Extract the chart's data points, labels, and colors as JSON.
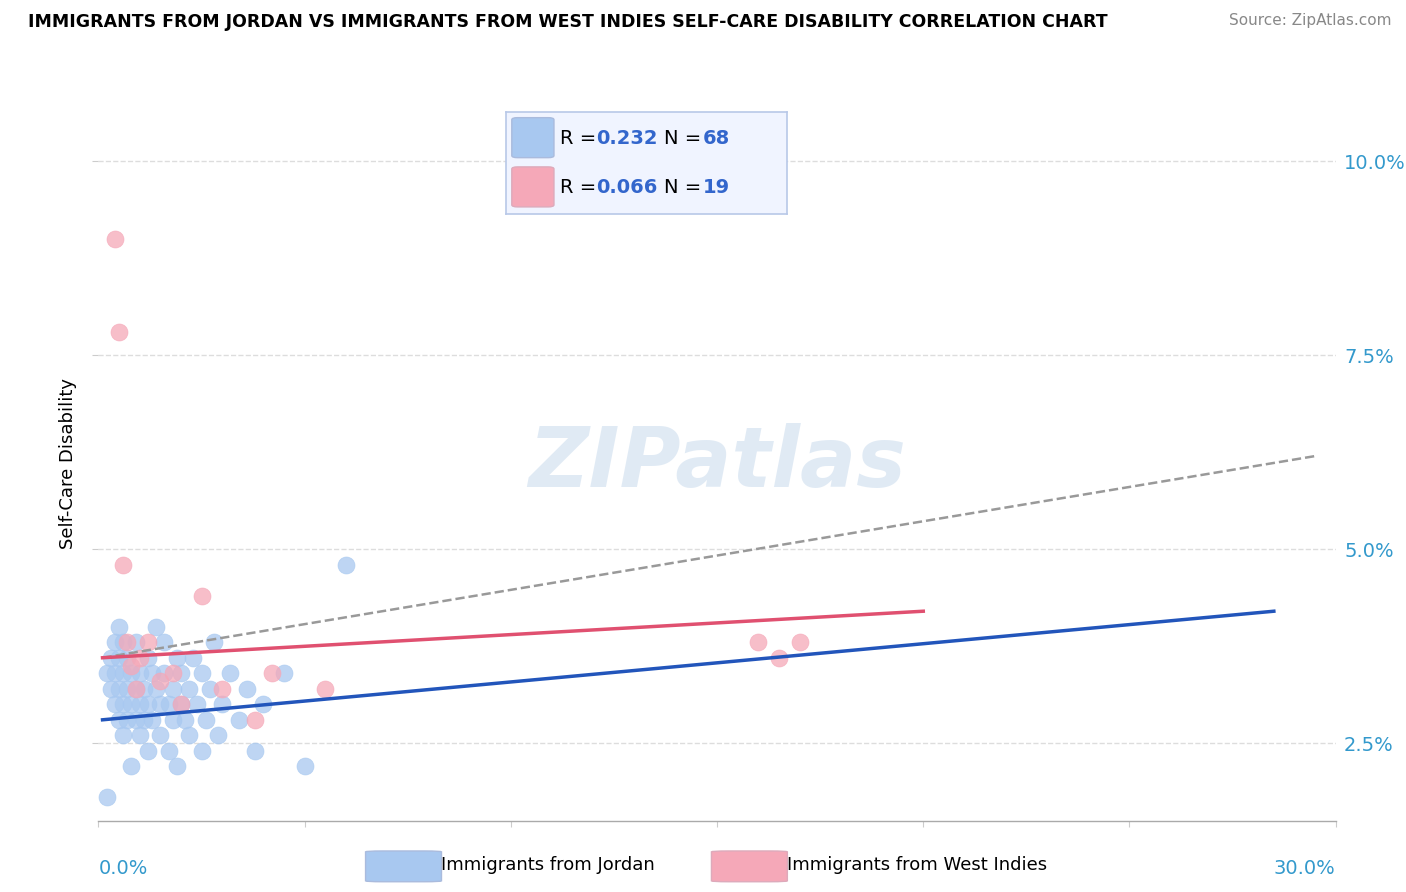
{
  "title": "IMMIGRANTS FROM JORDAN VS IMMIGRANTS FROM WEST INDIES SELF-CARE DISABILITY CORRELATION CHART",
  "source": "Source: ZipAtlas.com",
  "ylabel": "Self-Care Disability",
  "ytick_vals": [
    0.025,
    0.05,
    0.075,
    0.1
  ],
  "xlim": [
    0.0,
    0.3
  ],
  "ylim": [
    0.015,
    0.107
  ],
  "jordan_R": 0.232,
  "jordan_N": 68,
  "wi_R": 0.066,
  "wi_N": 19,
  "jordan_color": "#a8c8f0",
  "jordan_line_color": "#2255bb",
  "wi_color": "#f5a8b8",
  "wi_line_color": "#e05070",
  "jordan_line_x": [
    0.001,
    0.285
  ],
  "jordan_line_y": [
    0.028,
    0.042
  ],
  "wi_line_x": [
    0.001,
    0.2
  ],
  "wi_line_y": [
    0.036,
    0.042
  ],
  "gray_line_x": [
    0.001,
    0.295
  ],
  "gray_line_y": [
    0.036,
    0.062
  ],
  "jordan_scatter": [
    [
      0.002,
      0.034
    ],
    [
      0.003,
      0.036
    ],
    [
      0.003,
      0.032
    ],
    [
      0.004,
      0.038
    ],
    [
      0.004,
      0.03
    ],
    [
      0.004,
      0.034
    ],
    [
      0.005,
      0.036
    ],
    [
      0.005,
      0.032
    ],
    [
      0.005,
      0.028
    ],
    [
      0.005,
      0.04
    ],
    [
      0.006,
      0.034
    ],
    [
      0.006,
      0.03
    ],
    [
      0.006,
      0.038
    ],
    [
      0.006,
      0.026
    ],
    [
      0.007,
      0.032
    ],
    [
      0.007,
      0.036
    ],
    [
      0.007,
      0.028
    ],
    [
      0.008,
      0.034
    ],
    [
      0.008,
      0.03
    ],
    [
      0.008,
      0.022
    ],
    [
      0.009,
      0.032
    ],
    [
      0.009,
      0.028
    ],
    [
      0.009,
      0.038
    ],
    [
      0.01,
      0.03
    ],
    [
      0.01,
      0.034
    ],
    [
      0.01,
      0.026
    ],
    [
      0.011,
      0.032
    ],
    [
      0.011,
      0.028
    ],
    [
      0.012,
      0.036
    ],
    [
      0.012,
      0.03
    ],
    [
      0.012,
      0.024
    ],
    [
      0.013,
      0.034
    ],
    [
      0.013,
      0.028
    ],
    [
      0.014,
      0.032
    ],
    [
      0.014,
      0.04
    ],
    [
      0.015,
      0.03
    ],
    [
      0.015,
      0.026
    ],
    [
      0.016,
      0.034
    ],
    [
      0.016,
      0.038
    ],
    [
      0.017,
      0.03
    ],
    [
      0.017,
      0.024
    ],
    [
      0.018,
      0.032
    ],
    [
      0.018,
      0.028
    ],
    [
      0.019,
      0.036
    ],
    [
      0.019,
      0.022
    ],
    [
      0.02,
      0.03
    ],
    [
      0.02,
      0.034
    ],
    [
      0.021,
      0.028
    ],
    [
      0.022,
      0.032
    ],
    [
      0.022,
      0.026
    ],
    [
      0.023,
      0.036
    ],
    [
      0.024,
      0.03
    ],
    [
      0.025,
      0.034
    ],
    [
      0.025,
      0.024
    ],
    [
      0.026,
      0.028
    ],
    [
      0.027,
      0.032
    ],
    [
      0.028,
      0.038
    ],
    [
      0.029,
      0.026
    ],
    [
      0.03,
      0.03
    ],
    [
      0.032,
      0.034
    ],
    [
      0.034,
      0.028
    ],
    [
      0.036,
      0.032
    ],
    [
      0.038,
      0.024
    ],
    [
      0.04,
      0.03
    ],
    [
      0.045,
      0.034
    ],
    [
      0.05,
      0.022
    ],
    [
      0.06,
      0.048
    ],
    [
      0.002,
      0.018
    ]
  ],
  "wi_scatter": [
    [
      0.004,
      0.09
    ],
    [
      0.005,
      0.078
    ],
    [
      0.006,
      0.048
    ],
    [
      0.007,
      0.038
    ],
    [
      0.008,
      0.035
    ],
    [
      0.009,
      0.032
    ],
    [
      0.01,
      0.036
    ],
    [
      0.012,
      0.038
    ],
    [
      0.015,
      0.033
    ],
    [
      0.018,
      0.034
    ],
    [
      0.02,
      0.03
    ],
    [
      0.025,
      0.044
    ],
    [
      0.03,
      0.032
    ],
    [
      0.038,
      0.028
    ],
    [
      0.042,
      0.034
    ],
    [
      0.055,
      0.032
    ],
    [
      0.16,
      0.038
    ],
    [
      0.165,
      0.036
    ],
    [
      0.17,
      0.038
    ]
  ],
  "watermark": "ZIPatlas",
  "legend_color_jordan": "#3366cc",
  "legend_color_wi": "#cc3366"
}
